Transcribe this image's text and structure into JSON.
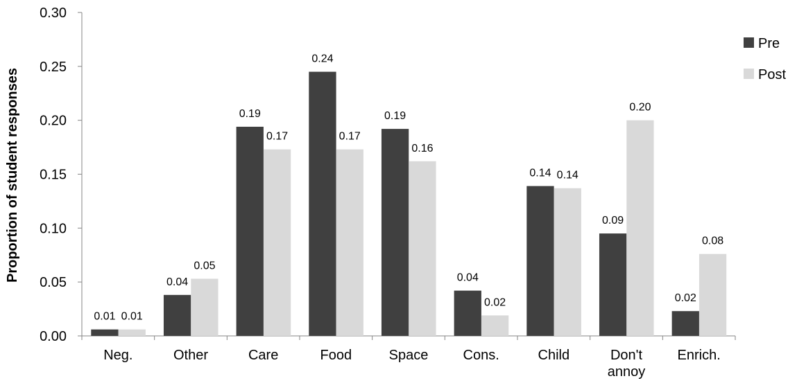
{
  "chart_data": {
    "type": "bar",
    "title": "",
    "xlabel": "",
    "ylabel": "Proportion of student responses",
    "ylim": [
      0,
      0.3
    ],
    "ytick_step": 0.05,
    "ytick_labels": [
      "0.00",
      "0.05",
      "0.10",
      "0.15",
      "0.20",
      "0.25",
      "0.30"
    ],
    "grid": false,
    "legend_position": "top-right",
    "categories": [
      [
        "Neg."
      ],
      [
        "Other"
      ],
      [
        "Care"
      ],
      [
        "Food"
      ],
      [
        "Space"
      ],
      [
        "Cons."
      ],
      [
        "Child"
      ],
      [
        "Don't",
        "annoy"
      ],
      [
        "Enrich."
      ]
    ],
    "series": [
      {
        "name": "Pre",
        "color": "#404040",
        "values": [
          0.006,
          0.038,
          0.194,
          0.245,
          0.192,
          0.042,
          0.139,
          0.095,
          0.023
        ],
        "labels": [
          "0.01",
          "0.04",
          "0.19",
          "0.24",
          "0.19",
          "0.04",
          "0.14",
          "0.09",
          "0.02"
        ]
      },
      {
        "name": "Post",
        "color": "#d9d9d9",
        "values": [
          0.006,
          0.053,
          0.173,
          0.173,
          0.162,
          0.019,
          0.137,
          0.2,
          0.076
        ],
        "labels": [
          "0.01",
          "0.05",
          "0.17",
          "0.17",
          "0.16",
          "0.02",
          "0.14",
          "0.20",
          "0.08"
        ]
      }
    ]
  }
}
